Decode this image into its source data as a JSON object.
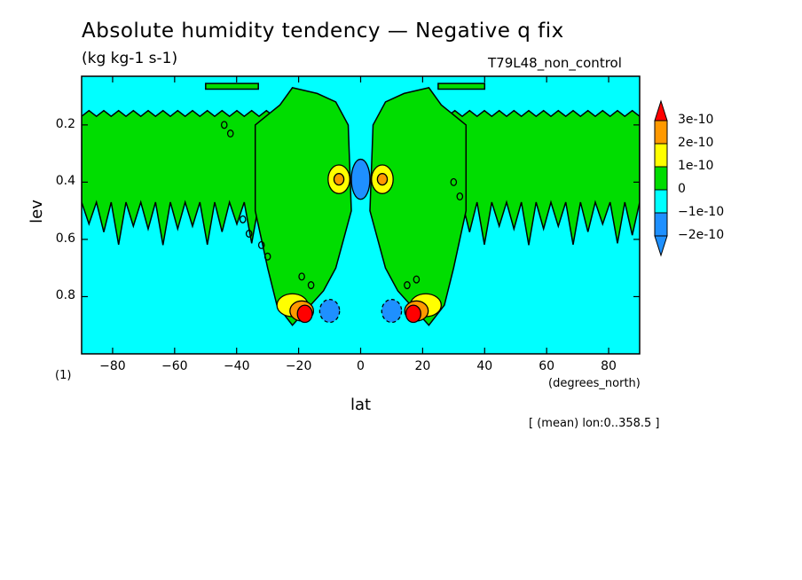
{
  "title": "Absolute humidity tendency — Negative q fix",
  "units": "(kg kg-1 s-1)",
  "run_label": "T79L48_non_control",
  "footer": "[ (mean) lon:0..358.5 ]",
  "chart_data": {
    "type": "heatmap",
    "title": "Absolute humidity tendency — Negative q fix",
    "subtitle": "(kg kg-1 s-1)",
    "xlabel": "lat",
    "xunits": "(degrees_north)",
    "ylabel": "lev",
    "yunits": "(1)",
    "xlim": [
      -90,
      90
    ],
    "ylim": [
      1.0,
      0.03
    ],
    "xticks": [
      "−80",
      "−60",
      "−40",
      "−20",
      "0",
      "20",
      "40",
      "60",
      "80"
    ],
    "xtick_values": [
      -80,
      -60,
      -40,
      -20,
      0,
      20,
      40,
      60,
      80
    ],
    "yticks": [
      "0.2",
      "0.4",
      "0.6",
      "0.8"
    ],
    "ytick_values": [
      0.2,
      0.4,
      0.6,
      0.8
    ],
    "background_level": "-1e-10 to 0",
    "levels": [
      "3e-10",
      "2e-10",
      "1e-10",
      "0",
      "−1e-10",
      "−2e-10"
    ],
    "level_colors": [
      "#ff0000",
      "#ff9900",
      "#ffff00",
      "#00dd00",
      "#00ffff",
      "#1e90ff"
    ],
    "features": [
      {
        "name": "upper-level positive band, south",
        "lat_range": [
          -90,
          -28
        ],
        "lev_range": [
          0.15,
          0.6
        ],
        "class": "0 to 1e-10"
      },
      {
        "name": "upper-level positive band, north",
        "lat_range": [
          28,
          90
        ],
        "lev_range": [
          0.15,
          0.6
        ],
        "class": "0 to 1e-10"
      },
      {
        "name": "subtropical column, south",
        "lat_range": [
          -35,
          -2
        ],
        "lev_range": [
          0.1,
          0.9
        ],
        "class": "0 to 1e-10"
      },
      {
        "name": "subtropical column, north",
        "lat_range": [
          2,
          35
        ],
        "lev_range": [
          0.1,
          0.9
        ],
        "class": "0 to 1e-10"
      },
      {
        "name": "equatorial negative core",
        "lat": 0,
        "lev": 0.39,
        "class": "-2e-10 to -1e-10"
      },
      {
        "name": "positive max south",
        "lat": -18,
        "lev": 0.85,
        "class": ">3e-10"
      },
      {
        "name": "positive max north",
        "lat": 17,
        "lev": 0.85,
        "class": ">3e-10"
      },
      {
        "name": "negative min south",
        "lat": -10,
        "lev": 0.85,
        "class": "-2e-10 to -1e-10"
      },
      {
        "name": "negative min north",
        "lat": 10,
        "lev": 0.85,
        "class": "-2e-10 to -1e-10"
      },
      {
        "name": "secondary maximum south",
        "lat": -7,
        "lev": 0.39,
        "class": "1e-10 to 2e-10"
      },
      {
        "name": "secondary maximum north",
        "lat": 7,
        "lev": 0.39,
        "class": "1e-10 to 2e-10"
      }
    ]
  }
}
